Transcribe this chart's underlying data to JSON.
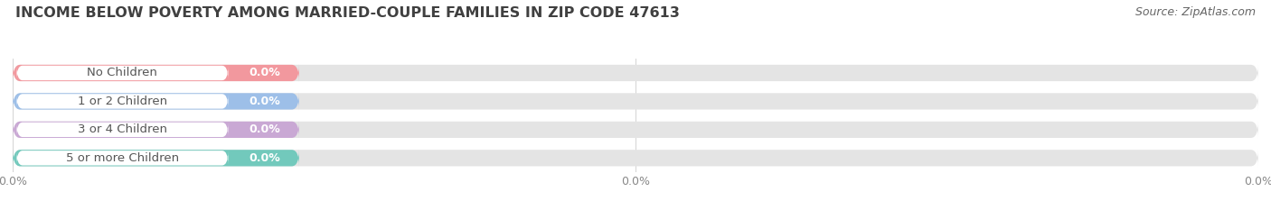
{
  "title": "INCOME BELOW POVERTY AMONG MARRIED-COUPLE FAMILIES IN ZIP CODE 47613",
  "source": "Source: ZipAtlas.com",
  "categories": [
    "No Children",
    "1 or 2 Children",
    "3 or 4 Children",
    "5 or more Children"
  ],
  "values": [
    0.0,
    0.0,
    0.0,
    0.0
  ],
  "bar_colors": [
    "#f2989e",
    "#9dbfe8",
    "#c9a8d4",
    "#72c9bc"
  ],
  "bar_background": "#e4e4e4",
  "background_color": "#ffffff",
  "title_fontsize": 11.5,
  "source_fontsize": 9,
  "label_fontsize": 9.5,
  "value_fontsize": 9,
  "tick_label_fontsize": 9,
  "bar_height": 0.58,
  "fig_width": 14.06,
  "fig_height": 2.33,
  "xlim_data": [
    0,
    100
  ],
  "xtick_positions": [
    0,
    50,
    100
  ],
  "xtick_labels": [
    "0.0%",
    "0.0%",
    "0.0%"
  ]
}
